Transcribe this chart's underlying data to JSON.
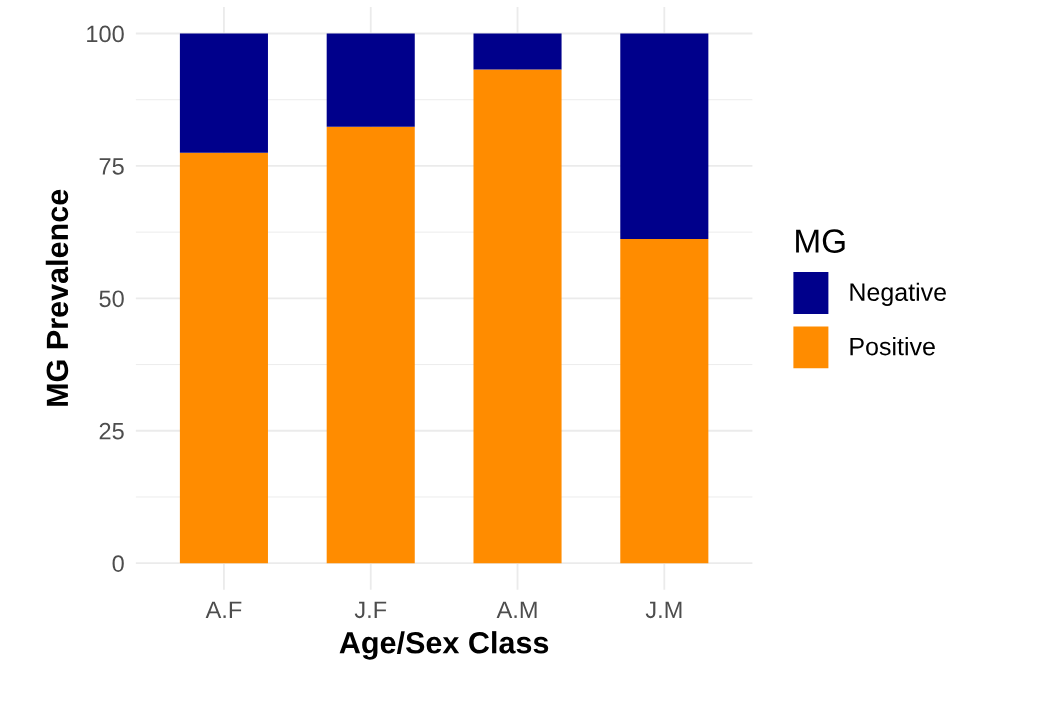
{
  "chart_data": {
    "type": "bar",
    "stacked": true,
    "xlabel": "Age/Sex Class",
    "ylabel": "MG Prevalence",
    "legend_title": "MG",
    "categories": [
      "A.F",
      "J.F",
      "A.M",
      "J.M"
    ],
    "series": [
      {
        "name": "Positive",
        "color": "#ff8c00",
        "values": [
          77.5,
          82.4,
          93.2,
          61.2
        ]
      },
      {
        "name": "Negative",
        "color": "#00008b",
        "values": [
          22.5,
          17.6,
          6.8,
          38.8
        ]
      }
    ],
    "ylim": [
      -5,
      105
    ],
    "yticks": [
      0,
      25,
      50,
      75,
      100
    ],
    "grid": true,
    "legend": "right"
  }
}
